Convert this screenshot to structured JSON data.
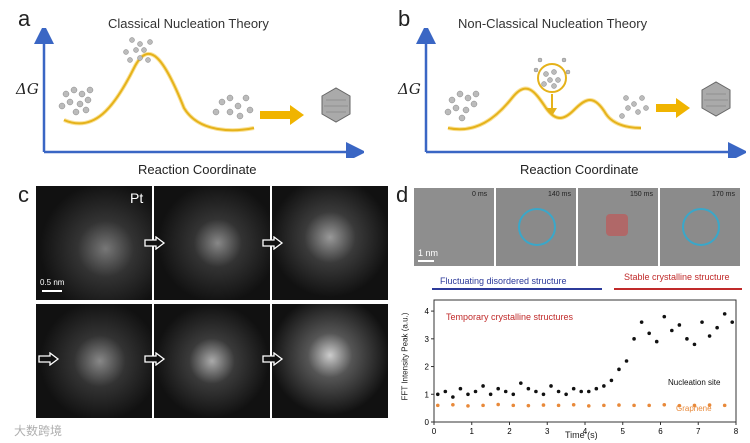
{
  "panel_a": {
    "label": "a",
    "title": "Classical Nucleation Theory",
    "y_axis": "ΔG",
    "x_axis": "Reaction Coordinate"
  },
  "panel_b": {
    "label": "b",
    "title": "Non-Classical Nucleation Theory",
    "y_axis": "ΔG",
    "x_axis": "Reaction Coordinate"
  },
  "panel_c": {
    "label": "c",
    "element": "Pt",
    "scale_bar": "0.5 nm"
  },
  "panel_d": {
    "label": "d",
    "frames": [
      "0 ms",
      "140 ms",
      "150 ms",
      "170 ms"
    ],
    "scale_bar": "1 nm",
    "annotation_fluct": "Fluctuating disordered structure",
    "annotation_stable": "Stable crystalline structure",
    "annotation_temp": "Temporary crystalline structures",
    "legend_nucleation": "Nucleation site",
    "legend_graphene": "Graphene"
  },
  "watermark": "大数跨境",
  "chart_data": {
    "type": "scatter",
    "title": "",
    "xlabel": "Time (s)",
    "ylabel": "FFT Intensity Peak (a.u.)",
    "xlim": [
      0,
      8
    ],
    "ylim": [
      0,
      4.4
    ],
    "xticks": [
      "0",
      "1",
      "2",
      "3",
      "4",
      "5",
      "6",
      "7",
      "8"
    ],
    "yticks": [
      "0",
      "1",
      "2",
      "3",
      "4"
    ],
    "series": [
      {
        "name": "Nucleation site",
        "color": "#111111",
        "x": [
          0.1,
          0.3,
          0.5,
          0.7,
          0.9,
          1.1,
          1.3,
          1.5,
          1.7,
          1.9,
          2.1,
          2.3,
          2.5,
          2.7,
          2.9,
          3.1,
          3.3,
          3.5,
          3.7,
          3.9,
          4.1,
          4.3,
          4.5,
          4.7,
          4.9,
          5.1,
          5.3,
          5.5,
          5.7,
          5.9,
          6.1,
          6.3,
          6.5,
          6.7,
          6.9,
          7.1,
          7.3,
          7.5,
          7.7,
          7.9
        ],
        "y": [
          1.0,
          1.1,
          0.9,
          1.2,
          1.0,
          1.1,
          1.3,
          1.0,
          1.2,
          1.1,
          1.0,
          1.4,
          1.2,
          1.1,
          1.0,
          1.3,
          1.1,
          1.0,
          1.2,
          1.1,
          1.1,
          1.2,
          1.3,
          1.5,
          1.9,
          2.2,
          3.0,
          3.6,
          3.2,
          2.9,
          3.8,
          3.3,
          3.5,
          3.0,
          2.8,
          3.6,
          3.1,
          3.4,
          3.9,
          3.6
        ]
      },
      {
        "name": "Graphene",
        "color": "#e8893a",
        "x": [
          0.1,
          0.5,
          0.9,
          1.3,
          1.7,
          2.1,
          2.5,
          2.9,
          3.3,
          3.7,
          4.1,
          4.5,
          4.9,
          5.3,
          5.7,
          6.1,
          6.5,
          6.9,
          7.3,
          7.7
        ],
        "y": [
          0.6,
          0.62,
          0.58,
          0.6,
          0.63,
          0.6,
          0.59,
          0.61,
          0.6,
          0.62,
          0.58,
          0.6,
          0.61,
          0.6,
          0.6,
          0.62,
          0.59,
          0.6,
          0.61,
          0.6
        ]
      }
    ]
  }
}
